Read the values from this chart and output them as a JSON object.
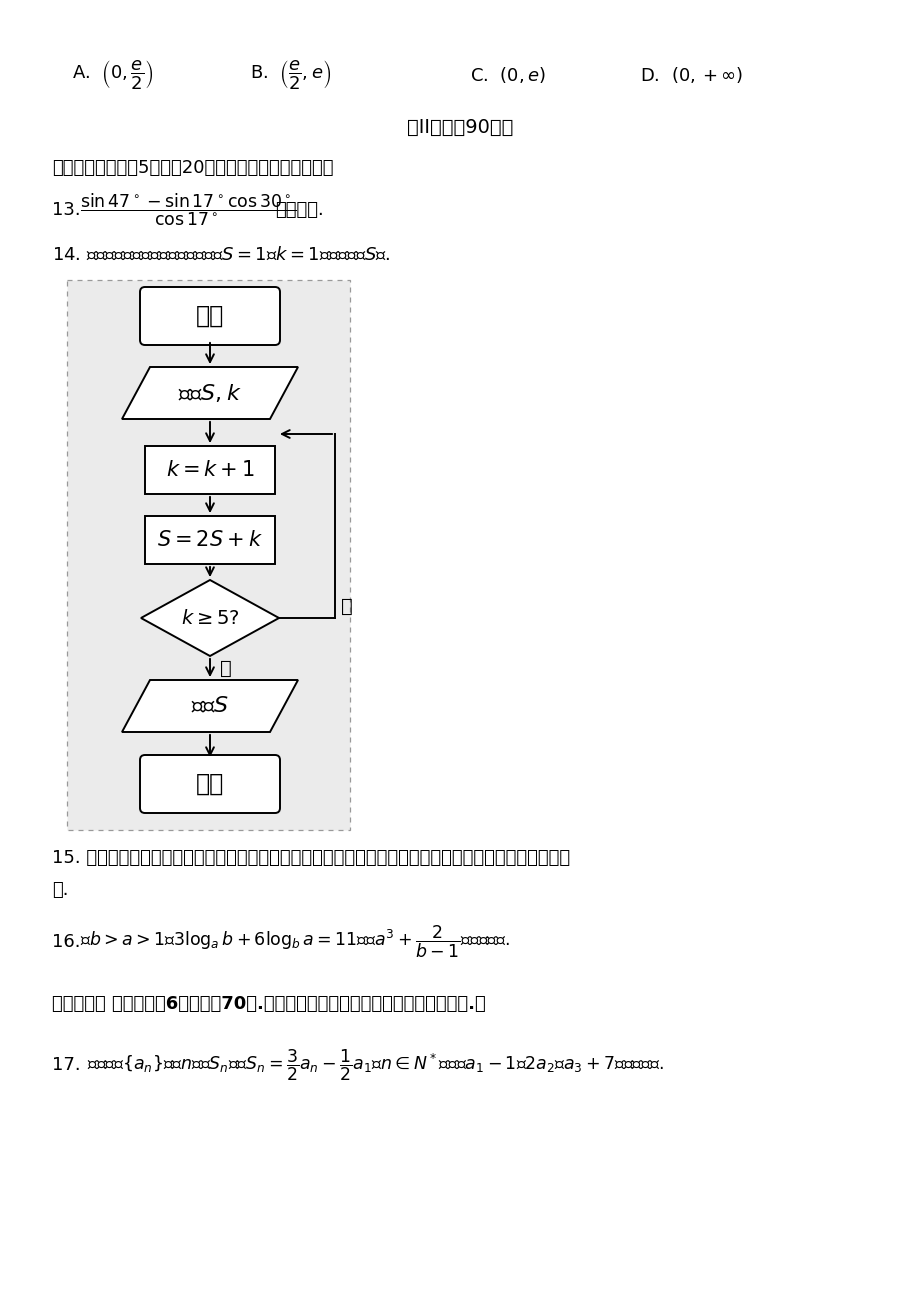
{
  "bg_color": "#ffffff",
  "opt_A": "A.  $\\left(0,\\dfrac{e}{2}\\right)$",
  "opt_B": "B.  $\\left(\\dfrac{e}{2},e\\right)$",
  "opt_C": "C. $(0,e)$",
  "opt_D": "D.  $(0,+\\infty)$",
  "part2_title": "第II卷（共90分）",
  "section2_title": "二、填空题（每题5分，满20分，将答案填在答题纸上）",
  "q13_num": "13.",
  "q13_suffix": "的値等于.",
  "q14_text": "14. 执行如图所示的程序框图，若输入$S=1$，$k=1$，则输出的$S$为.",
  "fc_start": "开始",
  "fc_input": "输入$S,k$",
  "fc_k": "$k=k+1$",
  "fc_s": "$S=2S+k$",
  "fc_cond": "$k\\geq5$?",
  "fc_output": "输出$S$",
  "fc_end": "结束",
  "fc_yes": "是",
  "fc_no": "否",
  "q15_line1": "15. 若一圆锥的体积与一球的体积相等，且圆锥底面半径与球的半径相等，则圆锥侧面积与球的表面积之比",
  "q15_line2": "为.",
  "q16_text": "16. 若$b>a>1$且$3\\log_a b+6\\log_b a=11$，则$a^3+\\dfrac{2}{b-1}$的最小値为.",
  "section3_title": "三、解答题 （本大题兲6小题，共70分.解答应写出文字说明、证明过程或演算步骤.）",
  "q17_text": "17.  已知数列$\\{a_n\\}$的前$n$项和$S_n$满足$S_n=\\dfrac{3}{2}a_n-\\dfrac{1}{2}a_1$（$n\\in N^*$），且$a_1-1$，$2a_2$，$a_3+7$成等差数列."
}
